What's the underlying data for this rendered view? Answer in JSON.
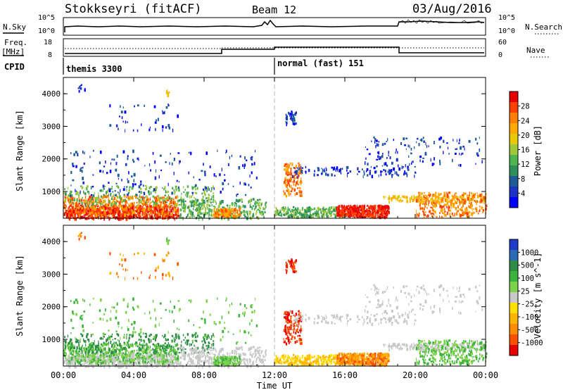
{
  "header": {
    "station": "Stokkseyri (fitACF)",
    "beam": "Beam 12",
    "date": "03/Aug/2016"
  },
  "left_labels": {
    "nsky": "N.Sky",
    "freq": "Freq.",
    "freq_unit": "[MHz]",
    "cpid": "CPID"
  },
  "right_labels": {
    "nsearch": "N.Search",
    "nave": "Nave"
  },
  "noise_axis": {
    "left_ticks": [
      "10^5",
      "10^0"
    ],
    "right_ticks": [
      "10^5",
      "10^0"
    ]
  },
  "freq_axis": {
    "left_ticks": [
      "18",
      "8"
    ],
    "right_ticks": [
      "60",
      "0"
    ]
  },
  "cpid_segments": [
    {
      "label": "themis 3300"
    },
    {
      "label": "normal (fast) 151"
    }
  ],
  "chart_data": [
    {
      "type": "heatmap",
      "name": "power",
      "ylabel": "Slant Range [km]",
      "y_ticks": [
        "1000",
        "2000",
        "3000",
        "4000"
      ],
      "ylim": [
        180,
        4500
      ],
      "colorbar_label": "Power [dB]",
      "colorbar_ticks": [
        "28",
        "24",
        "20",
        "16",
        "12",
        "8",
        "4"
      ],
      "colorbar_colors": [
        "#e60000",
        "#ff4000",
        "#ff8000",
        "#ffaa00",
        "#e8c800",
        "#a0c83c",
        "#50b450",
        "#2f8f5a",
        "#1e5a96",
        "#1e32c8",
        "#0000ff"
      ]
    },
    {
      "type": "heatmap",
      "name": "velocity",
      "ylabel": "Slant Range [km]",
      "y_ticks": [
        "1000",
        "2000",
        "3000",
        "4000"
      ],
      "ylim": [
        180,
        4500
      ],
      "colorbar_label": "Velocity [m s^-1]",
      "colorbar_ticks": [
        "1000",
        "500",
        "100",
        "25",
        "-25",
        "-100",
        "-500",
        "-1000"
      ],
      "colorbar_colors": [
        "#1e3cc8",
        "#2a6ab4",
        "#2e8c46",
        "#3cb43c",
        "#7ed24a",
        "#c8c8c8",
        "#ffe000",
        "#ffb400",
        "#ff8c00",
        "#ff5000",
        "#e60000"
      ]
    }
  ],
  "x_axis": {
    "ticks": [
      "00:00",
      "04:00",
      "08:00",
      "12:00",
      "16:00",
      "20:00",
      "00:00"
    ],
    "label": "Time UT"
  }
}
